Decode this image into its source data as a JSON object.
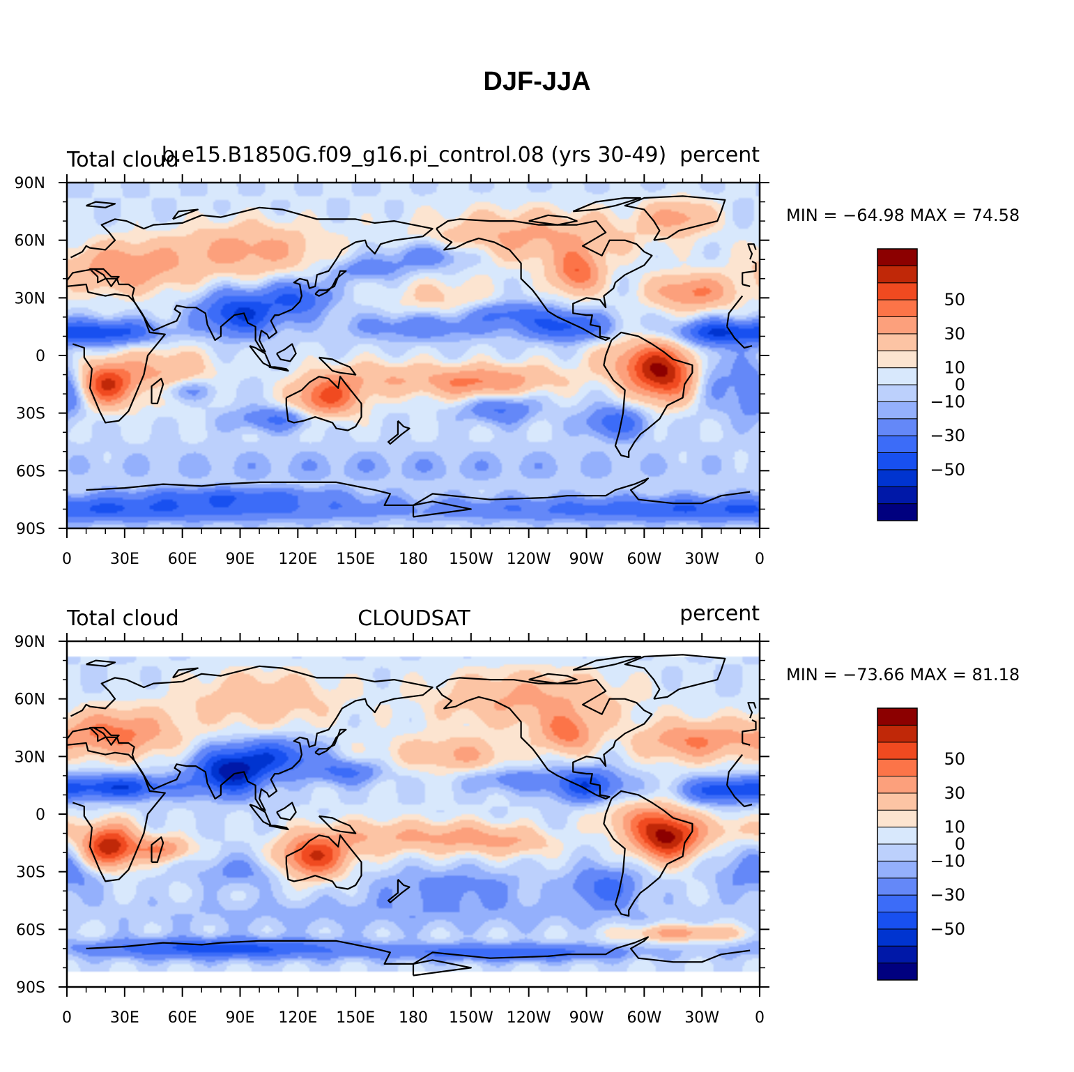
{
  "figure": {
    "title": "DJF-JJA"
  },
  "colors": {
    "levels": [
      -60,
      -50,
      -40,
      -30,
      -20,
      -10,
      -5,
      0,
      5,
      10,
      20,
      30,
      40,
      50,
      60
    ],
    "fills": [
      "#00007f",
      "#0018a8",
      "#0034d0",
      "#1850f0",
      "#3c6cf8",
      "#6488f8",
      "#94b0fc",
      "#bcd0fc",
      "#d8e8fc",
      "#fce4d0",
      "#fcc4a4",
      "#fca07c",
      "#fc7448",
      "#f04a20",
      "#c02808",
      "#8c0000"
    ]
  },
  "axes": {
    "lat_labels": [
      "90N",
      "60N",
      "30N",
      "0",
      "30S",
      "60S",
      "90S"
    ],
    "lat_values": [
      90,
      60,
      30,
      0,
      -30,
      -60,
      -90
    ],
    "lon_labels": [
      "0",
      "30E",
      "60E",
      "90E",
      "120E",
      "150E",
      "180",
      "150W",
      "120W",
      "90W",
      "60W",
      "30W",
      "0"
    ],
    "lon_values": [
      0,
      30,
      60,
      90,
      120,
      150,
      180,
      210,
      240,
      270,
      300,
      330,
      360
    ]
  },
  "panels": [
    {
      "id": "model",
      "left_title": "Total cloud",
      "center_title": "b.e15.B1850G.f09_g16.pi_control.08 (yrs 30-49)",
      "right_title": "percent",
      "stats": "MIN = −64.98  MAX =   74.58",
      "colorbar_labels": [
        "50",
        "30",
        "10",
        "0",
        "−10",
        "−30",
        "−50"
      ],
      "lat_extent": [
        -90,
        90
      ]
    },
    {
      "id": "obs",
      "left_title": "Total cloud",
      "center_title": "CLOUDSAT",
      "right_title": "percent",
      "stats": "MIN = −73.66  MAX =   81.18",
      "colorbar_labels": [
        "50",
        "30",
        "10",
        "0",
        "−10",
        "−30",
        "−50"
      ],
      "lat_extent": [
        -82,
        82
      ]
    }
  ]
}
